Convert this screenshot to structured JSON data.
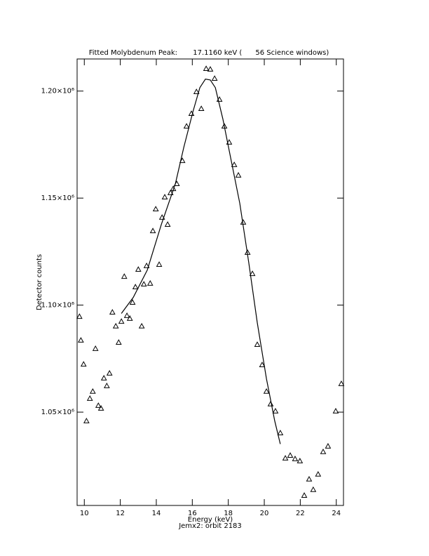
{
  "chart_data": {
    "type": "scatter",
    "title": "Fitted Molybdenum Peak:       17.1160 keV (      56 Science windows)",
    "x_label": "Energy (keV)",
    "y_label": "Detector counts",
    "subtitle": "Jemx2: orbit 2183",
    "xlim": [
      9.6,
      24.4
    ],
    "ylim": [
      1006400,
      1215000
    ],
    "xticks": [
      10,
      12,
      14,
      16,
      18,
      20,
      22,
      24
    ],
    "yticks": [
      {
        "value": 1050000,
        "label": "1.05×10⁶"
      },
      {
        "value": 1100000,
        "label": "1.10×10⁶"
      },
      {
        "value": 1150000,
        "label": "1.15×10⁶"
      },
      {
        "value": 1200000,
        "label": "1.20×10⁶"
      }
    ],
    "series": [
      {
        "marker": "triangle",
        "color": "#000000",
        "x": [
          9.73,
          9.81,
          9.96,
          10.12,
          10.31,
          10.47,
          10.62,
          10.78,
          10.93,
          11.09,
          11.25,
          11.4,
          11.56,
          11.75,
          11.91,
          12.06,
          12.22,
          12.37,
          12.53,
          12.68,
          12.84,
          13.0,
          13.19,
          13.31,
          13.46,
          13.66,
          13.81,
          13.97,
          14.16,
          14.32,
          14.47,
          14.63,
          14.79,
          14.94,
          15.14,
          15.45,
          15.68,
          15.95,
          16.23,
          16.5,
          16.77,
          17.0,
          17.24,
          17.51,
          17.78,
          18.05,
          18.33,
          18.56,
          18.83,
          19.07,
          19.34,
          19.61,
          19.88,
          20.12,
          20.35,
          20.62,
          20.89,
          21.17,
          21.44,
          21.71,
          21.98,
          22.22,
          22.49,
          22.72,
          22.99,
          23.27,
          23.54,
          23.97,
          24.28
        ],
        "values": [
          1094700,
          1083600,
          1072400,
          1045900,
          1056400,
          1059700,
          1079700,
          1053100,
          1051800,
          1065900,
          1062300,
          1068200,
          1096700,
          1090200,
          1082600,
          1092400,
          1113400,
          1095100,
          1093800,
          1101300,
          1108500,
          1116700,
          1090200,
          1109800,
          1118400,
          1110200,
          1134700,
          1144900,
          1119000,
          1141000,
          1150500,
          1137700,
          1152500,
          1154400,
          1156700,
          1167500,
          1183600,
          1189500,
          1199700,
          1191800,
          1210500,
          1210200,
          1205900,
          1196100,
          1183600,
          1176100,
          1165600,
          1160700,
          1138700,
          1124600,
          1114700,
          1081600,
          1072100,
          1059700,
          1053800,
          1050500,
          1040300,
          1028500,
          1029800,
          1028200,
          1027200,
          1011100,
          1018700,
          1013800,
          1021000,
          1031500,
          1034100,
          1050500,
          1063300
        ]
      },
      {
        "marker": "none",
        "color": "#000000",
        "x": [
          12.06,
          12.72,
          13.5,
          14.28,
          15.06,
          15.53,
          16.03,
          16.42,
          16.73,
          17.0,
          17.28,
          17.7,
          18.17,
          18.64,
          19.14,
          19.61,
          20.12,
          20.58,
          20.89
        ],
        "values": [
          1096100,
          1103600,
          1116400,
          1137700,
          1156700,
          1173800,
          1190200,
          1201600,
          1205600,
          1205200,
          1201600,
          1186900,
          1167200,
          1147500,
          1119700,
          1091800,
          1065600,
          1045900,
          1035100
        ]
      }
    ]
  }
}
